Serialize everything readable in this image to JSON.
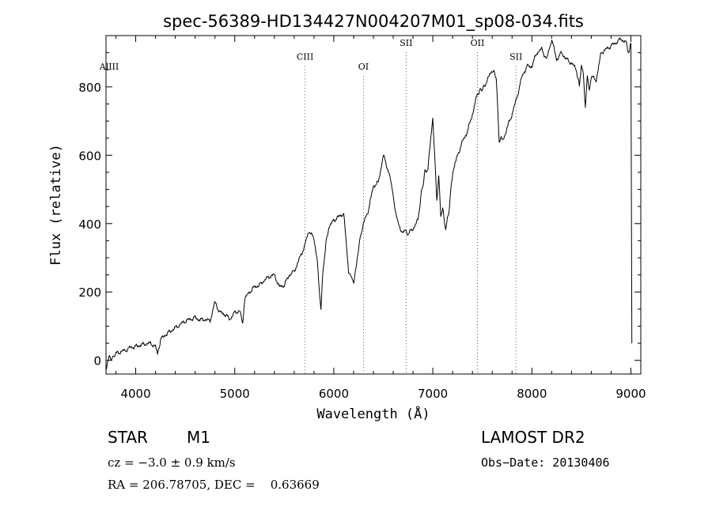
{
  "chart_data": {
    "type": "line",
    "title": "spec-56389-HD134427N004207M01_sp08-034.fits",
    "xlabel": "Wavelength (Å)",
    "ylabel": "Flux (relative)",
    "xlim": [
      3700,
      9100
    ],
    "ylim": [
      -40,
      950
    ],
    "x_ticks": [
      4000,
      5000,
      6000,
      7000,
      8000,
      9000
    ],
    "y_ticks": [
      0,
      200,
      400,
      600,
      800
    ],
    "grid": false,
    "series": [
      {
        "x": [
          3700,
          3730,
          3760,
          3800,
          3850,
          3900,
          3950,
          4000,
          4050,
          4100,
          4150,
          4200,
          4220,
          4250,
          4300,
          4350,
          4400,
          4450,
          4500,
          4550,
          4600,
          4650,
          4700,
          4750,
          4800,
          4850,
          4900,
          4950,
          5000,
          5050,
          5080,
          5100,
          5150,
          5200,
          5250,
          5300,
          5350,
          5400,
          5450,
          5500,
          5550,
          5600,
          5650,
          5700,
          5750,
          5800,
          5830,
          5870,
          5890,
          5920,
          5950,
          6000,
          6050,
          6100,
          6150,
          6180,
          6200,
          6230,
          6260,
          6300,
          6350,
          6400,
          6450,
          6500,
          6550,
          6580,
          6620,
          6650,
          6700,
          6720,
          6750,
          6800,
          6850,
          6880,
          6920,
          6950,
          7000,
          7040,
          7060,
          7080,
          7100,
          7130,
          7160,
          7200,
          7250,
          7300,
          7350,
          7400,
          7450,
          7480,
          7520,
          7550,
          7600,
          7640,
          7670,
          7690,
          7700,
          7720,
          7750,
          7800,
          7850,
          7900,
          7950,
          8000,
          8050,
          8100,
          8150,
          8200,
          8250,
          8300,
          8350,
          8400,
          8450,
          8480,
          8500,
          8520,
          8540,
          8560,
          8580,
          8600,
          8650,
          8700,
          8750,
          8800,
          8850,
          8900,
          8950,
          8980,
          9000,
          9010
        ],
        "y": [
          -25,
          10,
          5,
          20,
          25,
          30,
          38,
          40,
          45,
          48,
          50,
          40,
          15,
          60,
          75,
          85,
          95,
          105,
          115,
          120,
          125,
          118,
          120,
          115,
          170,
          140,
          135,
          120,
          140,
          145,
          110,
          180,
          200,
          215,
          220,
          235,
          245,
          250,
          215,
          220,
          250,
          260,
          295,
          330,
          380,
          355,
          300,
          145,
          260,
          340,
          390,
          410,
          420,
          430,
          260,
          240,
          230,
          280,
          350,
          400,
          440,
          510,
          520,
          600,
          555,
          520,
          440,
          400,
          370,
          380,
          370,
          385,
          410,
          480,
          550,
          560,
          710,
          470,
          540,
          420,
          440,
          385,
          430,
          550,
          600,
          640,
          670,
          720,
          780,
          790,
          800,
          820,
          850,
          830,
          640,
          660,
          640,
          650,
          680,
          720,
          770,
          830,
          860,
          860,
          900,
          910,
          880,
          940,
          880,
          900,
          880,
          870,
          850,
          800,
          860,
          840,
          740,
          840,
          790,
          830,
          820,
          900,
          910,
          920,
          930,
          940,
          930,
          900,
          930,
          50
        ]
      }
    ],
    "line_markers": [
      {
        "label": "AlIII",
        "x": 3700,
        "label_y": 850,
        "dashed": false
      },
      {
        "label": "CIII",
        "x": 5710,
        "label_y": 880,
        "dashed": true
      },
      {
        "label": "OI",
        "x": 6300,
        "label_y": 850,
        "dashed": true
      },
      {
        "label": "SII",
        "x": 6730,
        "label_y": 920,
        "dashed": true
      },
      {
        "label": "OII",
        "x": 7450,
        "label_y": 920,
        "dashed": true
      },
      {
        "label": "SII",
        "x": 7840,
        "label_y": 880,
        "dashed": true
      }
    ]
  },
  "info": {
    "object_class": "STAR",
    "subclass": "M1",
    "survey": "LAMOST DR2",
    "cz": "cz = −3.0 ± 0.9 km/s",
    "obs_date": "Obs−Date: 20130406",
    "coords": "RA = 206.78705, DEC =    0.63669"
  }
}
